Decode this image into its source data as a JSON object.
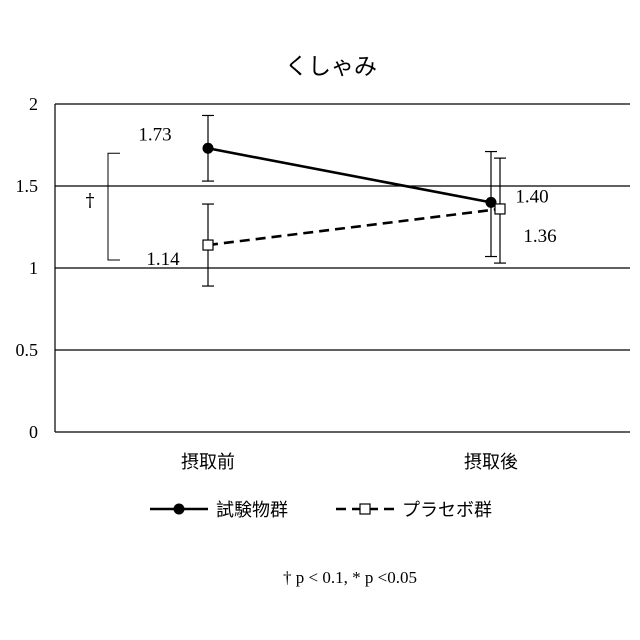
{
  "chart_data": {
    "type": "line",
    "title": "くしゃみ",
    "categories": [
      "摂取前",
      "摂取後"
    ],
    "ylim": [
      0,
      2
    ],
    "yticks": [
      0,
      0.5,
      1,
      1.5,
      2
    ],
    "ytick_labels": [
      "0",
      "0.5",
      "1",
      "1.5",
      "2"
    ],
    "grid": true,
    "legend_position": "bottom",
    "series": [
      {
        "name": "試験物群",
        "values": [
          1.73,
          1.4
        ],
        "value_labels": [
          "1.73",
          "1.40"
        ],
        "error_high": [
          1.93,
          1.71
        ],
        "error_low": [
          1.53,
          1.07
        ],
        "marker": "filled-circle",
        "line_style": "solid",
        "color": "#000000"
      },
      {
        "name": "プラセボ群",
        "values": [
          1.14,
          1.36
        ],
        "value_labels": [
          "1.14",
          "1.36"
        ],
        "error_high": [
          1.39,
          1.67
        ],
        "error_low": [
          0.89,
          1.03
        ],
        "marker": "open-square",
        "line_style": "dashed",
        "color": "#000000"
      }
    ],
    "annotations": {
      "significance_mark": "†",
      "footnote": "† p < 0.1,   * p <0.05"
    }
  }
}
